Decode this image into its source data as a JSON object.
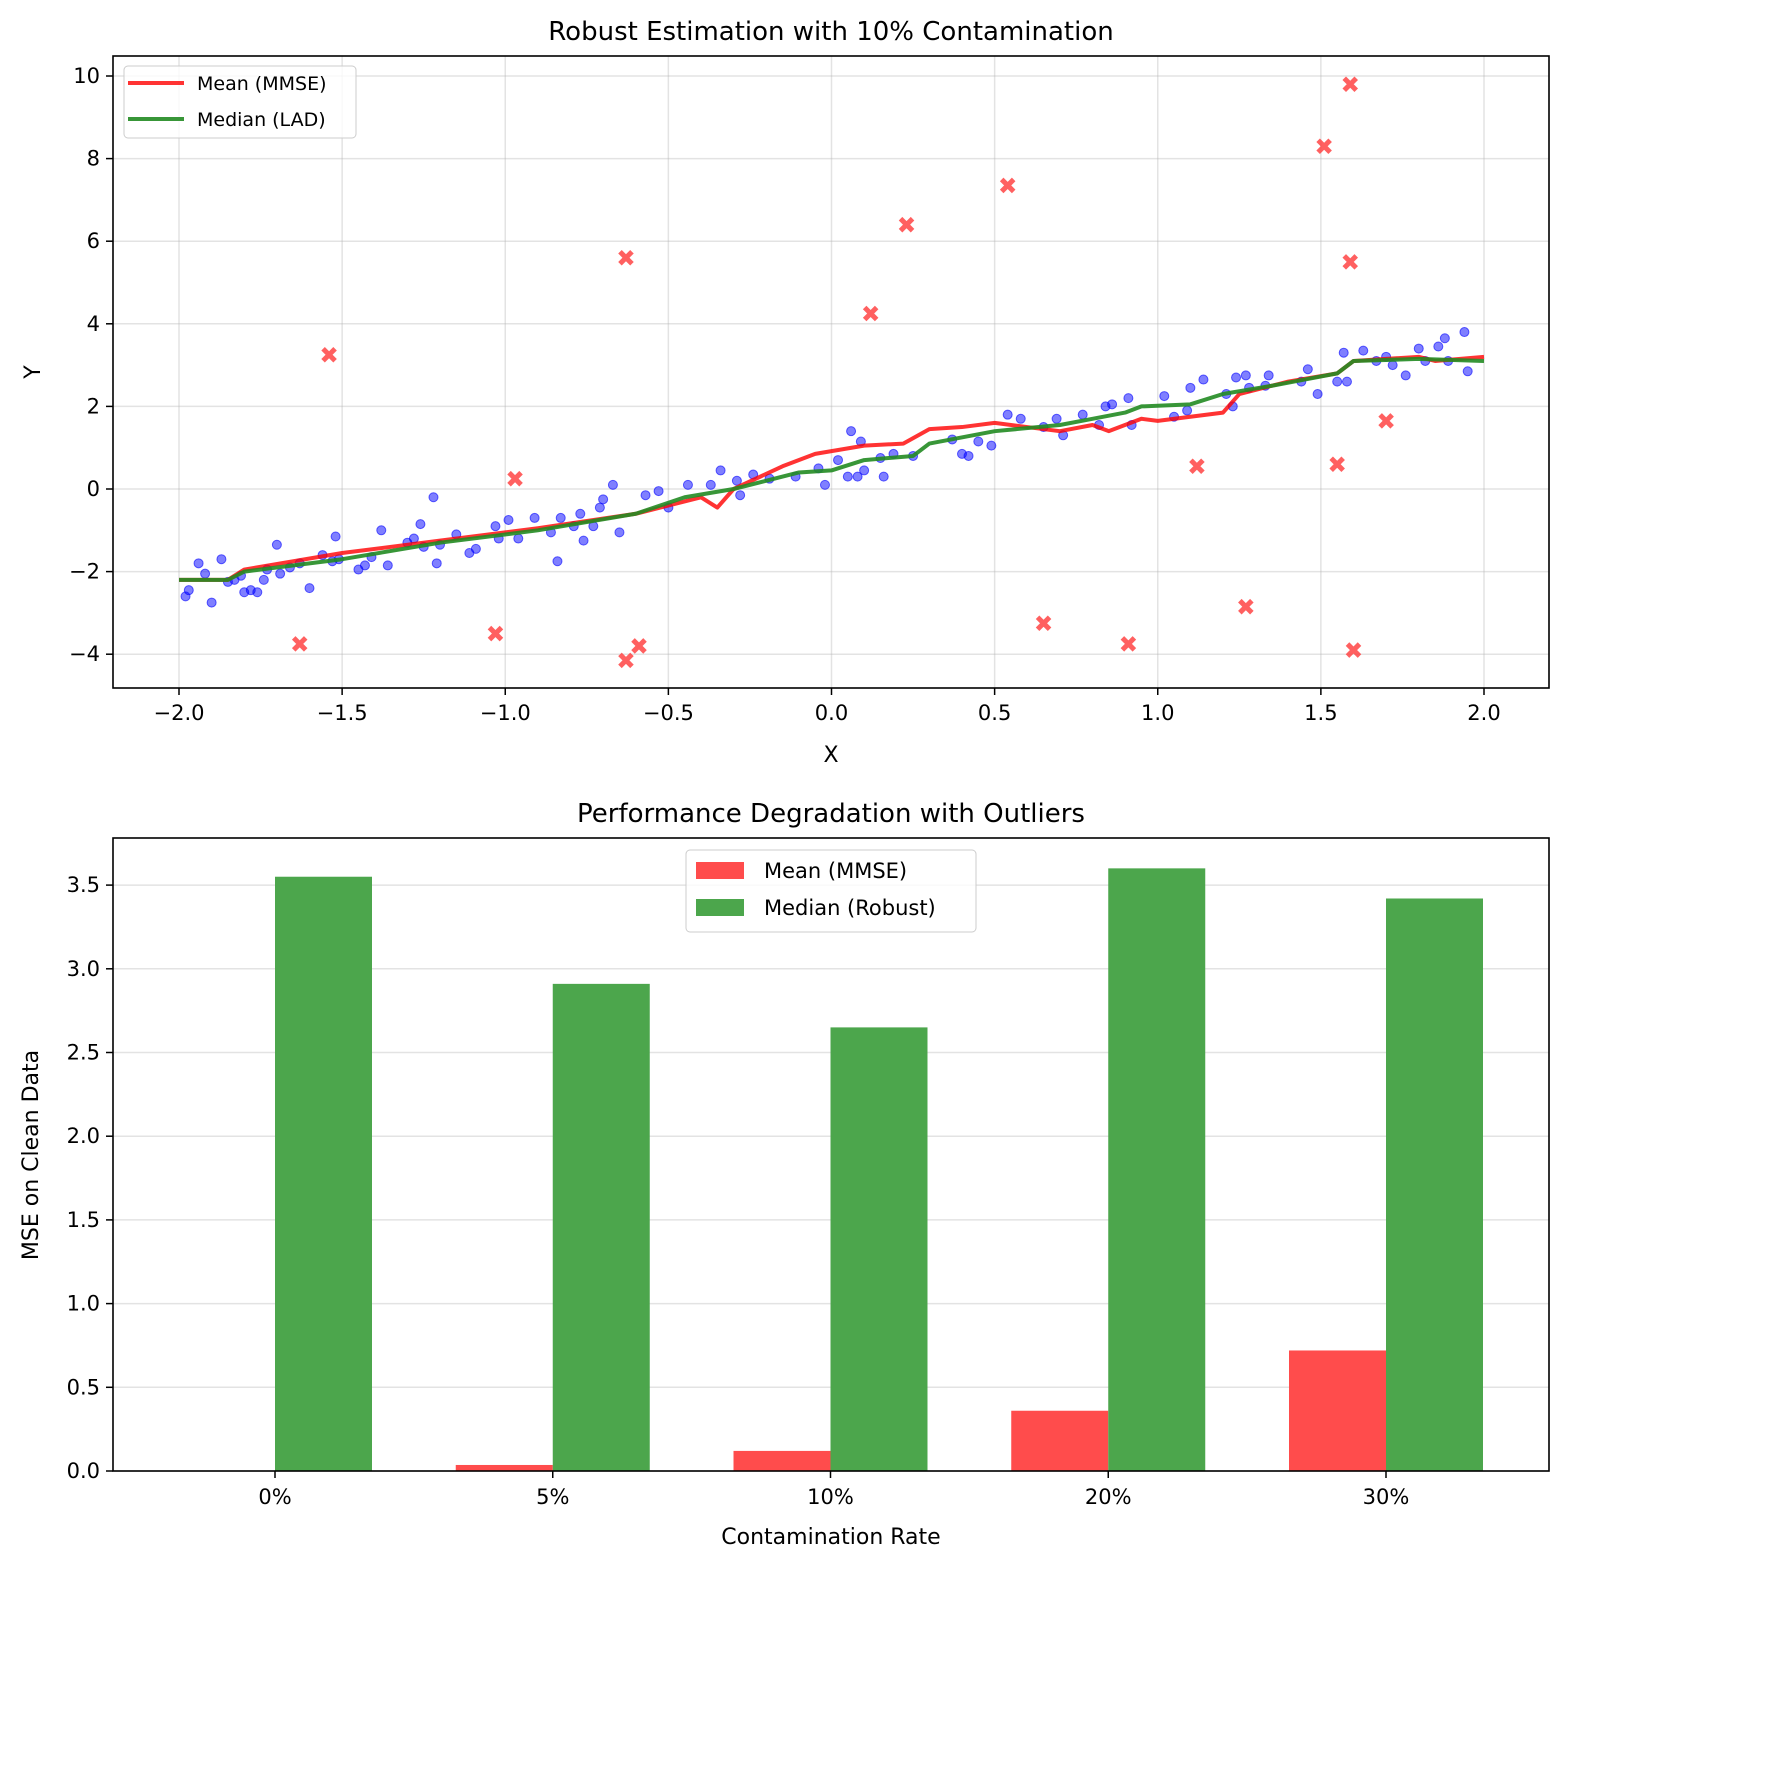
{
  "chart_data": [
    {
      "type": "scatter",
      "title": "Robust Estimation with 10% Contamination",
      "xlabel": "X",
      "ylabel": "Y",
      "xlim": [
        -2.2,
        2.2
      ],
      "ylim": [
        -4.8,
        10.5
      ],
      "grid": true,
      "legend_placement": "top-left",
      "x_ticks": [
        "−2.0",
        "−1.5",
        "−1.0",
        "−0.5",
        "0.0",
        "0.5",
        "1.0",
        "1.5",
        "2.0"
      ],
      "x_tick_values": [
        -2,
        -1.5,
        -1,
        -0.5,
        0,
        0.5,
        1,
        1.5,
        2
      ],
      "y_ticks": [
        "−4",
        "−2",
        "0",
        "2",
        "4",
        "6",
        "8",
        "10"
      ],
      "y_tick_values": [
        -4,
        -2,
        0,
        2,
        4,
        6,
        8,
        10
      ],
      "legend": [
        "Mean (MMSE)",
        "Median (LAD)"
      ],
      "colors": {
        "clean": "#0000ff",
        "outlier": "#ff4444",
        "mean": "#ff0000",
        "median": "#228b22"
      },
      "clean_points": [
        [
          -1.98,
          -2.6
        ],
        [
          -1.97,
          -2.45
        ],
        [
          -1.94,
          -1.8
        ],
        [
          -1.92,
          -2.05
        ],
        [
          -1.9,
          -2.75
        ],
        [
          -1.87,
          -1.7
        ],
        [
          -1.85,
          -2.25
        ],
        [
          -1.83,
          -2.2
        ],
        [
          -1.81,
          -2.1
        ],
        [
          -1.8,
          -2.5
        ],
        [
          -1.78,
          -2.45
        ],
        [
          -1.76,
          -2.5
        ],
        [
          -1.74,
          -2.2
        ],
        [
          -1.73,
          -1.95
        ],
        [
          -1.7,
          -1.35
        ],
        [
          -1.69,
          -2.05
        ],
        [
          -1.66,
          -1.9
        ],
        [
          -1.63,
          -1.8
        ],
        [
          -1.6,
          -2.4
        ],
        [
          -1.56,
          -1.6
        ],
        [
          -1.53,
          -1.75
        ],
        [
          -1.52,
          -1.15
        ],
        [
          -1.51,
          -1.7
        ],
        [
          -1.45,
          -1.95
        ],
        [
          -1.43,
          -1.85
        ],
        [
          -1.41,
          -1.65
        ],
        [
          -1.38,
          -1.0
        ],
        [
          -1.36,
          -1.85
        ],
        [
          -1.3,
          -1.3
        ],
        [
          -1.28,
          -1.2
        ],
        [
          -1.26,
          -0.85
        ],
        [
          -1.25,
          -1.4
        ],
        [
          -1.22,
          -0.2
        ],
        [
          -1.21,
          -1.8
        ],
        [
          -1.2,
          -1.35
        ],
        [
          -1.15,
          -1.1
        ],
        [
          -1.11,
          -1.55
        ],
        [
          -1.09,
          -1.45
        ],
        [
          -1.03,
          -0.9
        ],
        [
          -1.02,
          -1.2
        ],
        [
          -0.99,
          -0.75
        ],
        [
          -0.96,
          -1.2
        ],
        [
          -0.91,
          -0.7
        ],
        [
          -0.86,
          -1.05
        ],
        [
          -0.84,
          -1.75
        ],
        [
          -0.83,
          -0.7
        ],
        [
          -0.79,
          -0.9
        ],
        [
          -0.77,
          -0.6
        ],
        [
          -0.76,
          -1.25
        ],
        [
          -0.73,
          -0.9
        ],
        [
          -0.71,
          -0.45
        ],
        [
          -0.7,
          -0.25
        ],
        [
          -0.67,
          0.1
        ],
        [
          -0.65,
          -1.05
        ],
        [
          -0.57,
          -0.15
        ],
        [
          -0.53,
          -0.05
        ],
        [
          -0.5,
          -0.45
        ],
        [
          -0.44,
          0.1
        ],
        [
          -0.37,
          0.1
        ],
        [
          -0.34,
          0.45
        ],
        [
          -0.29,
          0.2
        ],
        [
          -0.28,
          -0.15
        ],
        [
          -0.24,
          0.35
        ],
        [
          -0.19,
          0.25
        ],
        [
          -0.11,
          0.3
        ],
        [
          -0.04,
          0.5
        ],
        [
          -0.02,
          0.1
        ],
        [
          0.02,
          0.7
        ],
        [
          0.05,
          0.3
        ],
        [
          0.06,
          1.4
        ],
        [
          0.08,
          0.3
        ],
        [
          0.09,
          1.15
        ],
        [
          0.1,
          0.45
        ],
        [
          0.15,
          0.75
        ],
        [
          0.16,
          0.3
        ],
        [
          0.19,
          0.85
        ],
        [
          0.25,
          0.8
        ],
        [
          0.37,
          1.2
        ],
        [
          0.4,
          0.85
        ],
        [
          0.42,
          0.8
        ],
        [
          0.45,
          1.15
        ],
        [
          0.49,
          1.05
        ],
        [
          0.54,
          1.8
        ],
        [
          0.58,
          1.7
        ],
        [
          0.65,
          1.5
        ],
        [
          0.69,
          1.7
        ],
        [
          0.71,
          1.3
        ],
        [
          0.77,
          1.8
        ],
        [
          0.82,
          1.55
        ],
        [
          0.84,
          2.0
        ],
        [
          0.86,
          2.05
        ],
        [
          0.91,
          2.2
        ],
        [
          0.92,
          1.55
        ],
        [
          1.02,
          2.25
        ],
        [
          1.05,
          1.75
        ],
        [
          1.09,
          1.9
        ],
        [
          1.1,
          2.45
        ],
        [
          1.14,
          2.65
        ],
        [
          1.21,
          2.3
        ],
        [
          1.23,
          2.0
        ],
        [
          1.24,
          2.7
        ],
        [
          1.27,
          2.75
        ],
        [
          1.28,
          2.45
        ],
        [
          1.33,
          2.5
        ],
        [
          1.34,
          2.75
        ],
        [
          1.44,
          2.6
        ],
        [
          1.46,
          2.9
        ],
        [
          1.49,
          2.3
        ],
        [
          1.55,
          2.6
        ],
        [
          1.57,
          3.3
        ],
        [
          1.58,
          2.6
        ],
        [
          1.63,
          3.35
        ],
        [
          1.67,
          3.1
        ],
        [
          1.7,
          3.2
        ],
        [
          1.72,
          3.0
        ],
        [
          1.76,
          2.75
        ],
        [
          1.8,
          3.4
        ],
        [
          1.82,
          3.1
        ],
        [
          1.86,
          3.45
        ],
        [
          1.88,
          3.65
        ],
        [
          1.89,
          3.1
        ],
        [
          1.94,
          3.8
        ],
        [
          1.95,
          2.85
        ]
      ],
      "outlier_points": [
        [
          -1.54,
          3.25
        ],
        [
          -1.63,
          -3.75
        ],
        [
          -0.97,
          0.25
        ],
        [
          -1.03,
          -3.5
        ],
        [
          -0.63,
          5.6
        ],
        [
          -0.63,
          -4.15
        ],
        [
          -0.59,
          -3.8
        ],
        [
          0.12,
          4.25
        ],
        [
          0.23,
          6.4
        ],
        [
          0.54,
          7.35
        ],
        [
          0.65,
          -3.25
        ],
        [
          0.91,
          -3.75
        ],
        [
          1.12,
          0.55
        ],
        [
          1.27,
          -2.85
        ],
        [
          1.51,
          8.3
        ],
        [
          1.59,
          9.8
        ],
        [
          1.59,
          5.5
        ],
        [
          1.55,
          0.6
        ],
        [
          1.6,
          -3.9
        ],
        [
          1.7,
          1.65
        ]
      ],
      "series": [
        {
          "name": "Mean (MMSE)",
          "x": [
            -2,
            -1.85,
            -1.8,
            -1.5,
            -1.2,
            -0.9,
            -0.6,
            -0.4,
            -0.35,
            -0.3,
            -0.15,
            -0.05,
            0.1,
            0.22,
            0.3,
            0.4,
            0.5,
            0.6,
            0.7,
            0.8,
            0.85,
            0.95,
            1.0,
            1.1,
            1.2,
            1.25,
            1.4,
            1.55,
            1.6,
            1.8,
            1.85,
            2.0
          ],
          "y": [
            -2.2,
            -2.2,
            -1.95,
            -1.55,
            -1.25,
            -0.95,
            -0.6,
            -0.2,
            -0.45,
            0,
            0.55,
            0.85,
            1.05,
            1.1,
            1.45,
            1.5,
            1.6,
            1.5,
            1.4,
            1.55,
            1.4,
            1.7,
            1.65,
            1.75,
            1.85,
            2.3,
            2.6,
            2.8,
            3.1,
            3.2,
            3.1,
            3.2
          ]
        },
        {
          "name": "Median (LAD)",
          "x": [
            -2,
            -1.85,
            -1.8,
            -1.5,
            -1.2,
            -0.9,
            -0.6,
            -0.45,
            -0.3,
            -0.1,
            0,
            0.1,
            0.25,
            0.3,
            0.5,
            0.7,
            0.8,
            0.9,
            0.95,
            1.1,
            1.2,
            1.35,
            1.55,
            1.6,
            1.8,
            2.0
          ],
          "y": [
            -2.2,
            -2.2,
            -2.0,
            -1.7,
            -1.3,
            -1.0,
            -0.6,
            -0.2,
            0,
            0.4,
            0.45,
            0.7,
            0.8,
            1.1,
            1.4,
            1.55,
            1.7,
            1.85,
            2.0,
            2.05,
            2.3,
            2.5,
            2.8,
            3.1,
            3.15,
            3.1
          ]
        }
      ]
    },
    {
      "type": "bar",
      "title": "Performance Degradation with Outliers",
      "xlabel": "Contamination Rate",
      "ylabel": "MSE on Clean Data",
      "categories": [
        "0%",
        "5%",
        "10%",
        "20%",
        "30%"
      ],
      "ylim": [
        0,
        3.77
      ],
      "grid": true,
      "legend_placement": "top-center",
      "y_ticks": [
        "0.0",
        "0.5",
        "1.0",
        "1.5",
        "2.0",
        "2.5",
        "3.0",
        "3.5"
      ],
      "y_tick_values": [
        0,
        0.5,
        1,
        1.5,
        2,
        2.5,
        3,
        3.5
      ],
      "series": [
        {
          "name": "Mean (MMSE)",
          "color": "#ff4c4c",
          "values": [
            0.0,
            0.036,
            0.12,
            0.36,
            0.72
          ]
        },
        {
          "name": "Median (Robust)",
          "color": "#4ca64c",
          "values": [
            3.55,
            2.91,
            2.65,
            3.6,
            3.42
          ]
        }
      ]
    }
  ]
}
